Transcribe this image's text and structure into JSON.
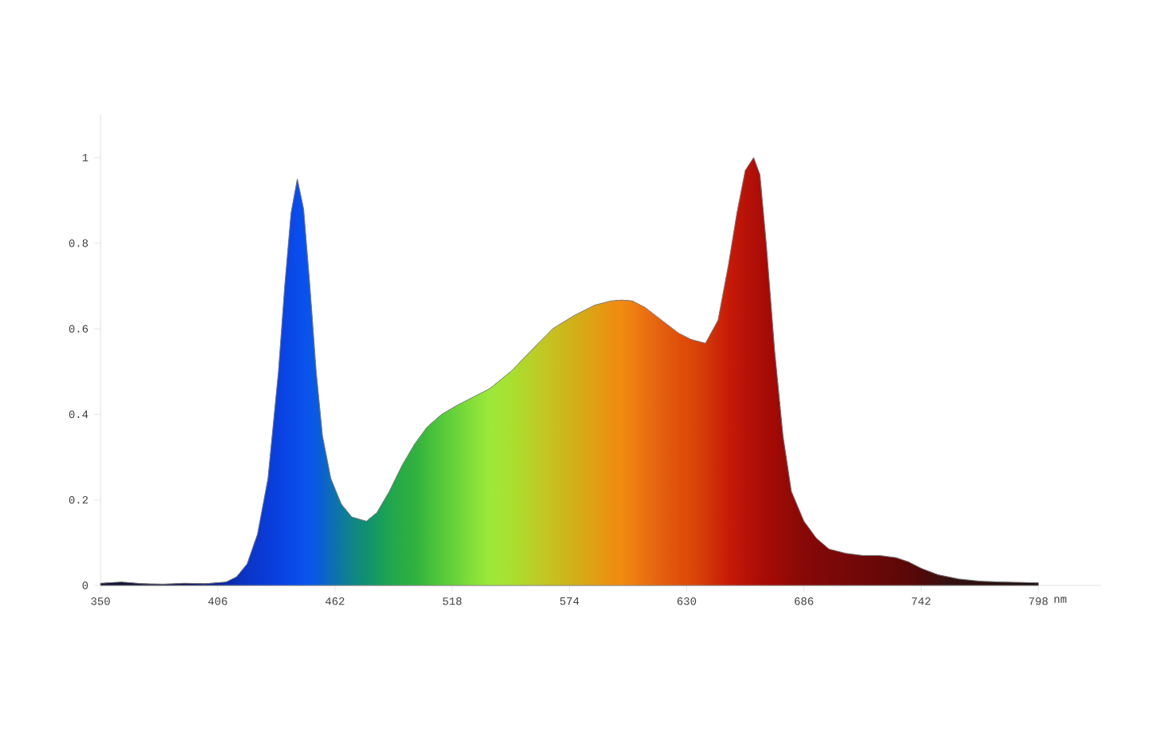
{
  "chart_data": {
    "type": "area",
    "xlabel": "nm",
    "xlim": [
      350,
      828
    ],
    "ylim": [
      0,
      1.1
    ],
    "xticks": [
      350,
      406,
      462,
      518,
      574,
      630,
      686,
      742,
      798
    ],
    "yticks": [
      0,
      0.2,
      0.4,
      0.6,
      0.8,
      1
    ],
    "grid": false,
    "series": [
      {
        "colors": [
          "#111133",
          "#111133",
          "#111138",
          "#111140",
          "#111150",
          "#0f1a80",
          "#0a28a8",
          "#0a30b8",
          "#0a35c8",
          "#0a38d0",
          "#0a3cd8",
          "#0a40e0",
          "#0a44e4",
          "#0a48e8",
          "#0a4cec",
          "#0a50ec",
          "#0a55e8",
          "#0a5ae0",
          "#0c62d0",
          "#0e6cb8",
          "#0f78a0",
          "#108488",
          "#109070",
          "#159a60",
          "#20a550",
          "#28ac45",
          "#30b040",
          "#40bc3c",
          "#55c83a",
          "#6ad43a",
          "#85e03a",
          "#9ee83a",
          "#a8e030",
          "#b8d028",
          "#c8c020",
          "#d0b018",
          "#e0a014",
          "#ec9010",
          "#f08a10",
          "#f08010",
          "#ea7010",
          "#e46010",
          "#e05008",
          "#dc4808",
          "#d43808",
          "#cc2808",
          "#c81a08",
          "#c01608",
          "#b81208",
          "#b01008",
          "#aa0c06",
          "#a80a05",
          "#a00a05",
          "#980a06",
          "#900a06",
          "#880808",
          "#820808",
          "#7c0808",
          "#780808",
          "#700808",
          "#680808",
          "#600808",
          "#5a0808",
          "#500808",
          "#401010",
          "#301010",
          "#301010",
          "#281010",
          "#201010",
          "#201010"
        ],
        "x": [
          350,
          360,
          370,
          380,
          390,
          400,
          410,
          415,
          420,
          425,
          430,
          435,
          438,
          441,
          444,
          447,
          450,
          453,
          456,
          460,
          465,
          470,
          477,
          482,
          488,
          494,
          500,
          506,
          513,
          520,
          528,
          536,
          546,
          556,
          566,
          576,
          586,
          594,
          599,
          604,
          610,
          618,
          626,
          632,
          639,
          645,
          650,
          654,
          658,
          662,
          665,
          668,
          672,
          676,
          680,
          686,
          692,
          698,
          706,
          714,
          722,
          730,
          736,
          742,
          750,
          760,
          770,
          780,
          790,
          798
        ],
        "values": [
          0.005,
          0.008,
          0.004,
          0.003,
          0.005,
          0.004,
          0.008,
          0.02,
          0.05,
          0.12,
          0.25,
          0.5,
          0.7,
          0.87,
          0.95,
          0.88,
          0.7,
          0.5,
          0.35,
          0.25,
          0.19,
          0.16,
          0.15,
          0.17,
          0.22,
          0.28,
          0.33,
          0.37,
          0.4,
          0.42,
          0.44,
          0.46,
          0.5,
          0.55,
          0.6,
          0.63,
          0.655,
          0.665,
          0.667,
          0.665,
          0.65,
          0.62,
          0.59,
          0.575,
          0.566,
          0.62,
          0.75,
          0.87,
          0.97,
          1.0,
          0.96,
          0.8,
          0.55,
          0.35,
          0.22,
          0.15,
          0.11,
          0.085,
          0.075,
          0.07,
          0.07,
          0.065,
          0.055,
          0.04,
          0.025,
          0.015,
          0.01,
          0.008,
          0.007,
          0.006
        ]
      }
    ]
  }
}
